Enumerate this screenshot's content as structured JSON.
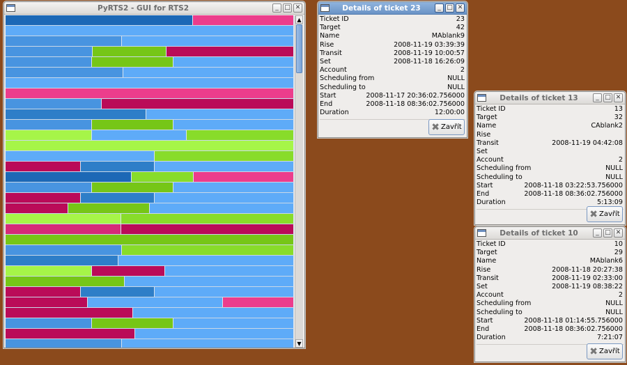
{
  "main": {
    "title": "PyRTS2 - GUI for RTS2",
    "colors": {
      "D": "#1c68b6",
      "P": "#ec3d8c",
      "L": "#5eabf8",
      "M": "#4894e0",
      "G": "#76c617",
      "R": "#ba0b58",
      "Y": "#a6f548",
      "H": "#88dc2a",
      "B": "#2e7ec8",
      "Q": "#d62a78"
    },
    "rows": [
      [
        [
          "D",
          64.9
        ],
        [
          "P",
          35.1
        ]
      ],
      [
        [
          "L",
          100
        ]
      ],
      [
        [
          "M",
          40.4
        ],
        [
          "L",
          59.6
        ]
      ],
      [
        [
          "M",
          30.3
        ],
        [
          "G",
          25.4
        ],
        [
          "R",
          44.3
        ]
      ],
      [
        [
          "M",
          30
        ],
        [
          "G",
          28.1
        ],
        [
          "L",
          41.9
        ]
      ],
      [
        [
          "M",
          40.9
        ],
        [
          "L",
          59.1
        ]
      ],
      [
        [
          "L",
          100
        ]
      ],
      [
        [
          "P",
          100
        ]
      ],
      [
        [
          "M",
          33.4
        ],
        [
          "R",
          66.6
        ]
      ],
      [
        [
          "B",
          48.9
        ],
        [
          "L",
          51.1
        ]
      ],
      [
        [
          "M",
          30
        ],
        [
          "G",
          28.1
        ],
        [
          "L",
          41.9
        ]
      ],
      [
        [
          "Y",
          30
        ],
        [
          "L",
          32.7
        ],
        [
          "H",
          37.3
        ]
      ],
      [
        [
          "Y",
          100
        ]
      ],
      [
        [
          "L",
          51.6
        ],
        [
          "H",
          48.4
        ]
      ],
      [
        [
          "R",
          26.1
        ],
        [
          "B",
          25.7
        ],
        [
          "L",
          48.2
        ]
      ],
      [
        [
          "D",
          43.6
        ],
        [
          "H",
          21.5
        ],
        [
          "P",
          34.9
        ]
      ],
      [
        [
          "M",
          30
        ],
        [
          "G",
          28.1
        ],
        [
          "L",
          41.9
        ]
      ],
      [
        [
          "R",
          26.1
        ],
        [
          "B",
          25.7
        ],
        [
          "L",
          48.2
        ]
      ],
      [
        [
          "R",
          21.8
        ],
        [
          "G",
          28.1
        ],
        [
          "L",
          50.1
        ]
      ],
      [
        [
          "Y",
          40.2
        ],
        [
          "H",
          59.8
        ]
      ],
      [
        [
          "Q",
          40.2
        ],
        [
          "R",
          59.8
        ]
      ],
      [
        [
          "G",
          100
        ]
      ],
      [
        [
          "M",
          40.4
        ],
        [
          "H",
          59.6
        ]
      ],
      [
        [
          "B",
          39.2
        ],
        [
          "L",
          60.8
        ]
      ],
      [
        [
          "Y",
          30
        ],
        [
          "R",
          25.2
        ],
        [
          "L",
          44.8
        ]
      ],
      [
        [
          "G",
          41.2
        ],
        [
          "L",
          58.8
        ]
      ],
      [
        [
          "R",
          26.1
        ],
        [
          "B",
          25.7
        ],
        [
          "L",
          48.2
        ]
      ],
      [
        [
          "R",
          28.6
        ],
        [
          "L",
          46.7
        ],
        [
          "P",
          24.7
        ]
      ],
      [
        [
          "R",
          44.3
        ],
        [
          "L",
          55.7
        ]
      ],
      [
        [
          "M",
          30
        ],
        [
          "G",
          28.1
        ],
        [
          "L",
          41.9
        ]
      ],
      [
        [
          "R",
          45
        ],
        [
          "L",
          55
        ]
      ],
      [
        [
          "M",
          40.4
        ],
        [
          "L",
          59.6
        ]
      ]
    ]
  },
  "labels": [
    "Ticket ID",
    "Target",
    "Name",
    "Rise",
    "Transit",
    "Set",
    "Account",
    "Scheduling from",
    "Scheduling to",
    "Start",
    "End",
    "Duration"
  ],
  "close_label": "Zavřít",
  "tickets": [
    {
      "title": "Details of ticket 23",
      "values": [
        "23",
        "42",
        "MAblank9",
        "2008-11-19 03:39:39",
        "2008-11-19 10:00:57",
        "2008-11-18 16:26:09",
        "2",
        "NULL",
        "NULL",
        "2008-11-17 20:36:02.756000",
        "2008-11-18 08:36:02.756000",
        "12:00:00"
      ]
    },
    {
      "title": "Details of ticket 13",
      "values": [
        "13",
        "32",
        "CAblank2",
        "",
        "2008-11-19 04:42:08",
        "",
        "2",
        "NULL",
        "NULL",
        "2008-11-18 03:22:53.756000",
        "2008-11-18 08:36:02.756000",
        "5:13:09"
      ]
    },
    {
      "title": "Details of ticket 10",
      "values": [
        "10",
        "29",
        "MAblank6",
        "2008-11-18 20:27:38",
        "2008-11-19 02:33:00",
        "2008-11-19 08:38:22",
        "2",
        "NULL",
        "NULL",
        "2008-11-18 01:14:55.756000",
        "2008-11-18 08:36:02.756000",
        "7:21:07"
      ]
    }
  ]
}
